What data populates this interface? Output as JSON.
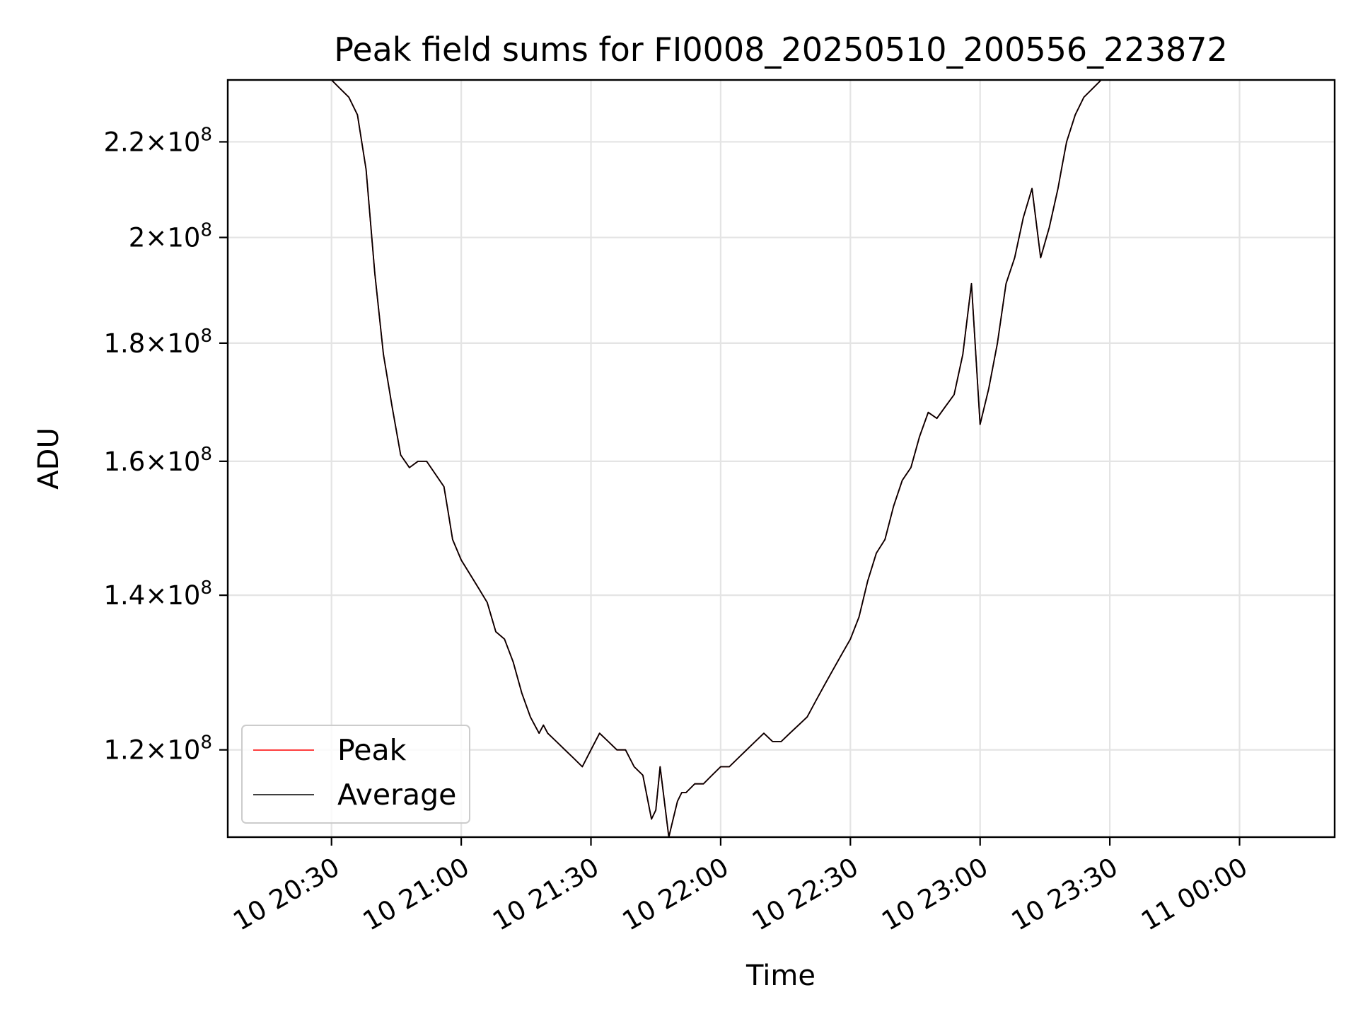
{
  "chart_data": {
    "type": "line",
    "title": "Peak field sums for FI0008_20250510_200556_223872",
    "xlabel": "Time",
    "ylabel": "ADU",
    "y_scale": "log",
    "grid": true,
    "legend_position": "lower-left",
    "xlim": [
      "2025-05-10 20:06",
      "2025-05-11 00:22"
    ],
    "ylim": [
      110000000,
      234000000
    ],
    "x_ticks": [
      {
        "time": "2025-05-10 20:30",
        "label": "10 20:30"
      },
      {
        "time": "2025-05-10 21:00",
        "label": "10 21:00"
      },
      {
        "time": "2025-05-10 21:30",
        "label": "10 21:30"
      },
      {
        "time": "2025-05-10 22:00",
        "label": "10 22:00"
      },
      {
        "time": "2025-05-10 22:30",
        "label": "10 22:30"
      },
      {
        "time": "2025-05-10 23:00",
        "label": "10 23:00"
      },
      {
        "time": "2025-05-10 23:30",
        "label": "10 23:30"
      },
      {
        "time": "2025-05-11 00:00",
        "label": "11 00:00"
      }
    ],
    "y_ticks": [
      {
        "value": 120000000,
        "mantissa": "1.2",
        "base": "10",
        "exp": "8"
      },
      {
        "value": 140000000,
        "mantissa": "1.4",
        "base": "10",
        "exp": "8"
      },
      {
        "value": 160000000,
        "mantissa": "1.6",
        "base": "10",
        "exp": "8"
      },
      {
        "value": 180000000,
        "mantissa": "1.8",
        "base": "10",
        "exp": "8"
      },
      {
        "value": 200000000,
        "mantissa": "2",
        "base": "10",
        "exp": "8"
      },
      {
        "value": 220000000,
        "mantissa": "2.2",
        "base": "10",
        "exp": "8"
      }
    ],
    "x": [
      "2025-05-10 20:30",
      "2025-05-10 20:32",
      "2025-05-10 20:34",
      "2025-05-10 20:36",
      "2025-05-10 20:38",
      "2025-05-10 20:40",
      "2025-05-10 20:42",
      "2025-05-10 20:44",
      "2025-05-10 20:46",
      "2025-05-10 20:48",
      "2025-05-10 20:50",
      "2025-05-10 20:52",
      "2025-05-10 20:54",
      "2025-05-10 20:56",
      "2025-05-10 20:57",
      "2025-05-10 20:58",
      "2025-05-10 21:00",
      "2025-05-10 21:02",
      "2025-05-10 21:04",
      "2025-05-10 21:06",
      "2025-05-10 21:08",
      "2025-05-10 21:10",
      "2025-05-10 21:12",
      "2025-05-10 21:14",
      "2025-05-10 21:16",
      "2025-05-10 21:17",
      "2025-05-10 21:18",
      "2025-05-10 21:19",
      "2025-05-10 21:20",
      "2025-05-10 21:22",
      "2025-05-10 21:24",
      "2025-05-10 21:26",
      "2025-05-10 21:28",
      "2025-05-10 21:30",
      "2025-05-10 21:32",
      "2025-05-10 21:34",
      "2025-05-10 21:36",
      "2025-05-10 21:38",
      "2025-05-10 21:40",
      "2025-05-10 21:42",
      "2025-05-10 21:44",
      "2025-05-10 21:45",
      "2025-05-10 21:46",
      "2025-05-10 21:48",
      "2025-05-10 21:49",
      "2025-05-10 21:50",
      "2025-05-10 21:51",
      "2025-05-10 21:52",
      "2025-05-10 21:54",
      "2025-05-10 21:56",
      "2025-05-10 21:58",
      "2025-05-10 22:00",
      "2025-05-10 22:02",
      "2025-05-10 22:04",
      "2025-05-10 22:06",
      "2025-05-10 22:08",
      "2025-05-10 22:10",
      "2025-05-10 22:12",
      "2025-05-10 22:14",
      "2025-05-10 22:16",
      "2025-05-10 22:18",
      "2025-05-10 22:20",
      "2025-05-10 22:22",
      "2025-05-10 22:24",
      "2025-05-10 22:26",
      "2025-05-10 22:28",
      "2025-05-10 22:30",
      "2025-05-10 22:32",
      "2025-05-10 22:34",
      "2025-05-10 22:36",
      "2025-05-10 22:38",
      "2025-05-10 22:40",
      "2025-05-10 22:42",
      "2025-05-10 22:44",
      "2025-05-10 22:46",
      "2025-05-10 22:48",
      "2025-05-10 22:50",
      "2025-05-10 22:52",
      "2025-05-10 22:54",
      "2025-05-10 22:56",
      "2025-05-10 22:58",
      "2025-05-10 23:00",
      "2025-05-10 23:02",
      "2025-05-10 23:04",
      "2025-05-10 23:06",
      "2025-05-10 23:08",
      "2025-05-10 23:10",
      "2025-05-10 23:12",
      "2025-05-10 23:14",
      "2025-05-10 23:16",
      "2025-05-10 23:18",
      "2025-05-10 23:19",
      "2025-05-10 23:20",
      "2025-05-10 23:22",
      "2025-05-10 23:24",
      "2025-05-10 23:26",
      "2025-05-10 23:28",
      "2025-05-10 23:30",
      "2025-05-10 23:32",
      "2025-05-10 23:34",
      "2025-05-10 23:36",
      "2025-05-10 23:38",
      "2025-05-10 23:40",
      "2025-05-10 23:42",
      "2025-05-10 23:44",
      "2025-05-10 23:46",
      "2025-05-10 23:48",
      "2025-05-10 23:50",
      "2025-05-10 23:52",
      "2025-05-10 23:54",
      "2025-05-10 23:56",
      "2025-05-10 23:58",
      "2025-05-11 00:00"
    ],
    "series": [
      {
        "name": "Peak",
        "color": "#ff0000",
        "values": [
          234000000,
          232000000,
          230000000,
          226000000,
          214000000,
          193000000,
          178000000,
          169000000,
          161000000,
          159000000,
          160000000,
          160000000,
          158000000,
          156000000,
          152000000,
          148000000,
          145000000,
          143000000,
          141000000,
          139000000,
          135000000,
          134000000,
          131000000,
          127000000,
          124000000,
          123000000,
          122000000,
          123000000,
          122000000,
          121000000,
          120000000,
          119000000,
          118000000,
          120000000,
          122000000,
          121000000,
          120000000,
          120000000,
          118000000,
          117000000,
          112000000,
          113000000,
          118000000,
          110000000,
          112000000,
          114000000,
          115000000,
          115000000,
          116000000,
          116000000,
          117000000,
          118000000,
          118000000,
          119000000,
          120000000,
          121000000,
          122000000,
          121000000,
          121000000,
          122000000,
          123000000,
          124000000,
          126000000,
          128000000,
          130000000,
          132000000,
          134000000,
          137000000,
          142000000,
          146000000,
          148000000,
          153000000,
          157000000,
          159000000,
          164000000,
          168000000,
          167000000,
          169000000,
          171000000,
          178000000,
          191000000,
          166000000,
          172000000,
          180000000,
          191000000,
          196000000,
          204000000,
          210000000,
          196000000,
          202000000,
          210000000,
          215000000,
          220000000,
          226000000,
          230000000,
          232000000,
          234000000,
          234000000,
          234000000,
          234000000,
          234000000,
          234000000,
          234000000,
          234000000,
          234000000,
          234000000,
          234000000,
          234000000,
          234000000,
          234000000,
          234000000,
          234000000,
          234000000
        ]
      },
      {
        "name": "Average",
        "color": "#000000",
        "values": [
          234000000,
          232000000,
          230000000,
          226000000,
          214000000,
          193000000,
          178000000,
          169000000,
          161000000,
          159000000,
          160000000,
          160000000,
          158000000,
          156000000,
          152000000,
          148000000,
          145000000,
          143000000,
          141000000,
          139000000,
          135000000,
          134000000,
          131000000,
          127000000,
          124000000,
          123000000,
          122000000,
          123000000,
          122000000,
          121000000,
          120000000,
          119000000,
          118000000,
          120000000,
          122000000,
          121000000,
          120000000,
          120000000,
          118000000,
          117000000,
          112000000,
          113000000,
          118000000,
          110000000,
          112000000,
          114000000,
          115000000,
          115000000,
          116000000,
          116000000,
          117000000,
          118000000,
          118000000,
          119000000,
          120000000,
          121000000,
          122000000,
          121000000,
          121000000,
          122000000,
          123000000,
          124000000,
          126000000,
          128000000,
          130000000,
          132000000,
          134000000,
          137000000,
          142000000,
          146000000,
          148000000,
          153000000,
          157000000,
          159000000,
          164000000,
          168000000,
          167000000,
          169000000,
          171000000,
          178000000,
          191000000,
          166000000,
          172000000,
          180000000,
          191000000,
          196000000,
          204000000,
          210000000,
          196000000,
          202000000,
          210000000,
          215000000,
          220000000,
          226000000,
          230000000,
          232000000,
          234000000,
          234000000,
          234000000,
          234000000,
          234000000,
          234000000,
          234000000,
          234000000,
          234000000,
          234000000,
          234000000,
          234000000,
          234000000,
          234000000,
          234000000,
          234000000,
          234000000
        ]
      }
    ]
  }
}
